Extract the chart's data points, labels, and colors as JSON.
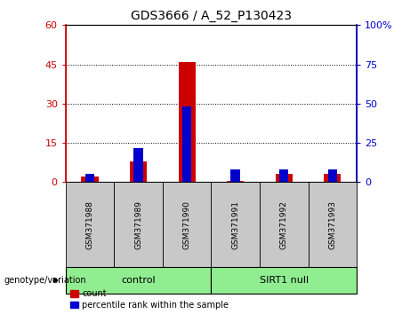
{
  "title": "GDS3666 / A_52_P130423",
  "samples": [
    "GSM371988",
    "GSM371989",
    "GSM371990",
    "GSM371991",
    "GSM371992",
    "GSM371993"
  ],
  "count_values": [
    2,
    8,
    46,
    0.5,
    3,
    3
  ],
  "percentile_values": [
    3,
    13,
    29,
    5,
    5,
    5
  ],
  "groups": [
    {
      "label": "control",
      "n": 3
    },
    {
      "label": "SIRT1 null",
      "n": 3
    }
  ],
  "left_ylim": [
    0,
    60
  ],
  "right_ylim": [
    0,
    100
  ],
  "left_yticks": [
    0,
    15,
    30,
    45,
    60
  ],
  "right_yticks": [
    0,
    25,
    50,
    75,
    100
  ],
  "left_ytick_labels": [
    "0",
    "15",
    "30",
    "45",
    "60"
  ],
  "right_ytick_labels": [
    "0",
    "25",
    "50",
    "75",
    "100%"
  ],
  "left_color": "#cc0000",
  "right_color": "#0000cc",
  "grid_yticks": [
    15,
    30,
    45
  ],
  "count_color": "#cc0000",
  "percentile_color": "#0000cc",
  "group_bg_color": "#90EE90",
  "sample_bg_color": "#c8c8c8",
  "legend_count": "count",
  "legend_percentile": "percentile rank within the sample",
  "genotype_label": "genotype/variation"
}
